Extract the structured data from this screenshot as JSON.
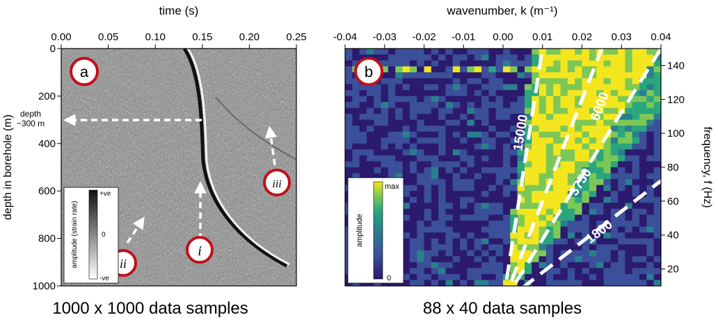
{
  "panel_a": {
    "letter": "a",
    "caption": "1000 x 1000 data samples",
    "annotations": {
      "depth_line1": "depth",
      "depth_line2": "~300 m",
      "marker_i": "i",
      "marker_ii": "ii",
      "marker_iii": "iii"
    },
    "colorbar": {
      "label": "amplitude (strain rate)",
      "top": "+ve",
      "mid": "0",
      "bottom": "-ve",
      "colors": [
        "#111111",
        "#ffffff"
      ]
    }
  },
  "panel_b": {
    "letter": "b",
    "caption": "88 x 40 data samples",
    "colorbar": {
      "label": "amplitude",
      "top": "max",
      "bottom": "0",
      "colors": [
        "#2b1a6e",
        "#3b4f9a",
        "#2a7f8e",
        "#2aa67c",
        "#7cc857",
        "#f4e61e"
      ]
    },
    "velocity_lines": [
      {
        "label": "15000",
        "slope": 15000
      },
      {
        "label": "6000",
        "slope": 6000
      },
      {
        "label": "3750",
        "slope": 3750
      },
      {
        "label": "1800",
        "slope": 1800
      }
    ]
  },
  "chart_data": [
    {
      "type": "heatmap",
      "xlabel": "time (s)",
      "ylabel": "depth in borehole (m)",
      "xlim": [
        0,
        0.25
      ],
      "ylim": [
        1000,
        0
      ],
      "x_ticks": [
        "0.00",
        "0.05",
        "0.10",
        "0.15",
        "0.20",
        "0.25"
      ],
      "y_ticks": [
        "0",
        "200",
        "400",
        "600",
        "800",
        "1000"
      ],
      "x_tick_values": [
        0,
        0.05,
        0.1,
        0.15,
        0.2,
        0.25
      ],
      "y_tick_values": [
        0,
        200,
        400,
        600,
        800,
        1000
      ],
      "grid": false,
      "legend": "bottom-left colorbar"
    },
    {
      "type": "heatmap",
      "xlabel": "wavenumber, k (m⁻¹)",
      "ylabel": "frequency, f (Hz)",
      "xlim": [
        -0.04,
        0.04
      ],
      "ylim": [
        10,
        150
      ],
      "x_ticks": [
        "-0.04",
        "-0.03",
        "-0.02",
        "-0.01",
        "0.00",
        "0.01",
        "0.02",
        "0.03",
        "0.04"
      ],
      "y_ticks": [
        "20",
        "40",
        "60",
        "80",
        "100",
        "120",
        "140"
      ],
      "x_tick_values": [
        -0.04,
        -0.03,
        -0.02,
        -0.01,
        0,
        0.01,
        0.02,
        0.03,
        0.04
      ],
      "y_tick_values": [
        20,
        40,
        60,
        80,
        100,
        120,
        140
      ],
      "grid": false,
      "legend": "left colorbar"
    }
  ]
}
